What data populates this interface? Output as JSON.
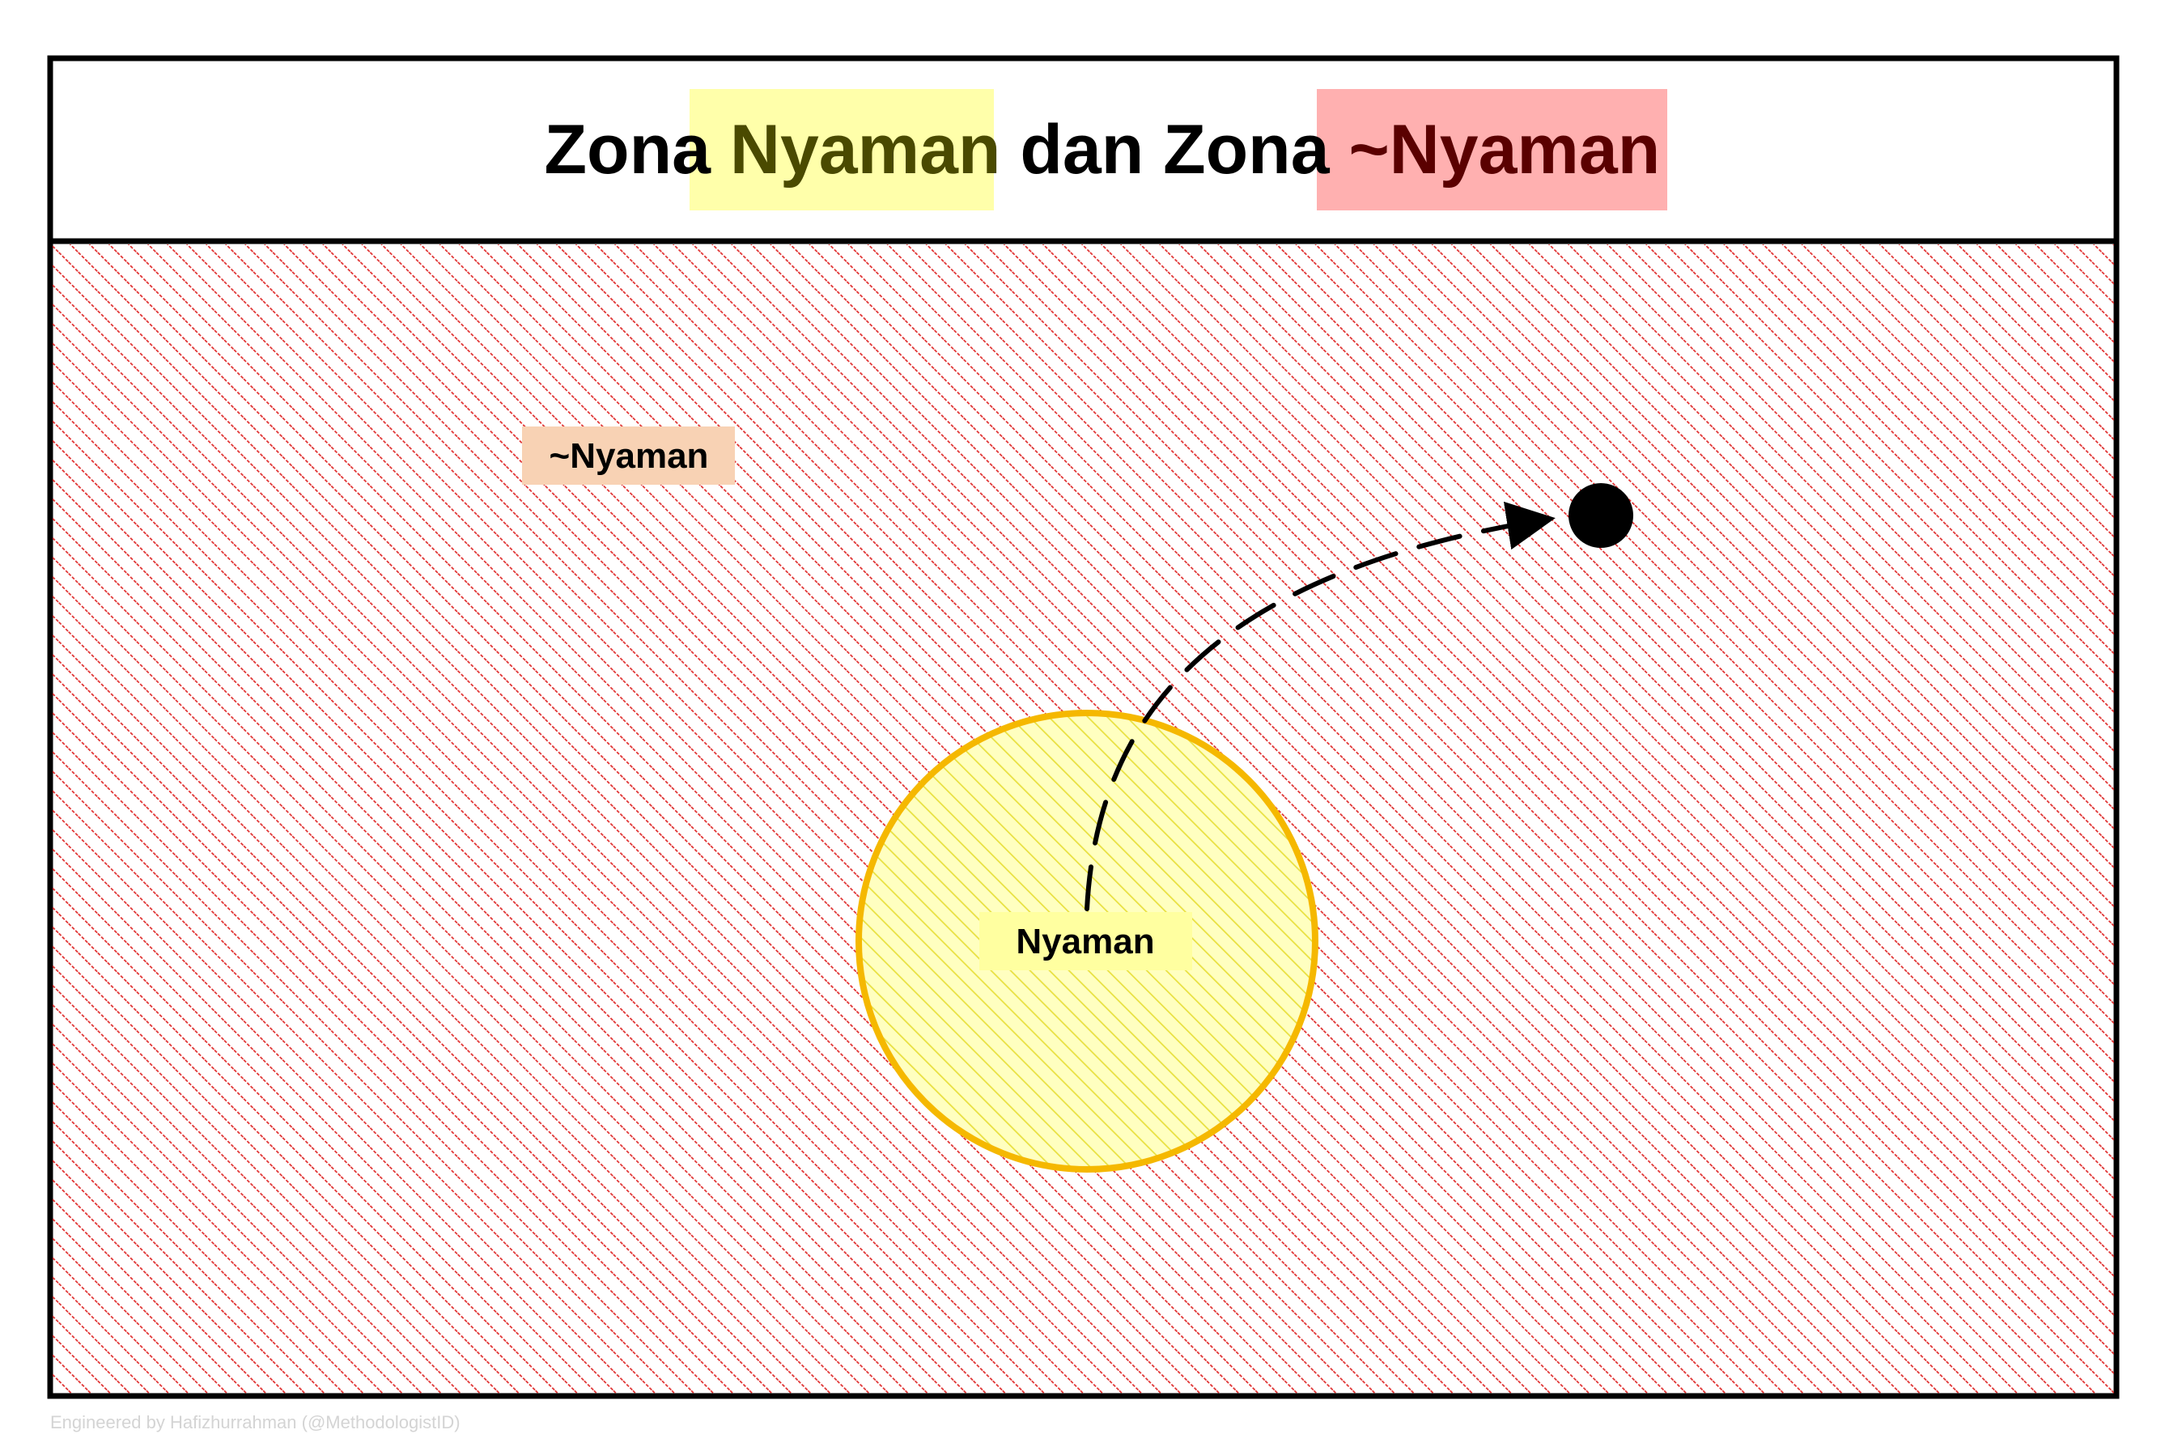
{
  "title": {
    "part1": "Zona ",
    "highlight1": "Nyaman",
    "part2": " dan Zona ",
    "highlight2": "~Nyaman"
  },
  "zones": {
    "outer_label": "~Nyaman",
    "inner_label": "Nyaman"
  },
  "credit": "Engineered by Hafizhurrahman (@MethodologistID)",
  "colors": {
    "frame": "#000000",
    "outer_hatch": "#e03030",
    "inner_hatch": "#e8e040",
    "circle_stroke": "#f5b800",
    "circle_fill": "#ffffc0",
    "title_highlight1_bg": "#ffffaa",
    "title_highlight1_text": "#4a4a00",
    "title_highlight2_bg": "#ffb0b0",
    "title_highlight2_text": "#5a0000",
    "outer_label_bg": "#f8d2b4",
    "inner_label_bg": "#ffffa0",
    "credit_text": "#d4d4d4"
  }
}
